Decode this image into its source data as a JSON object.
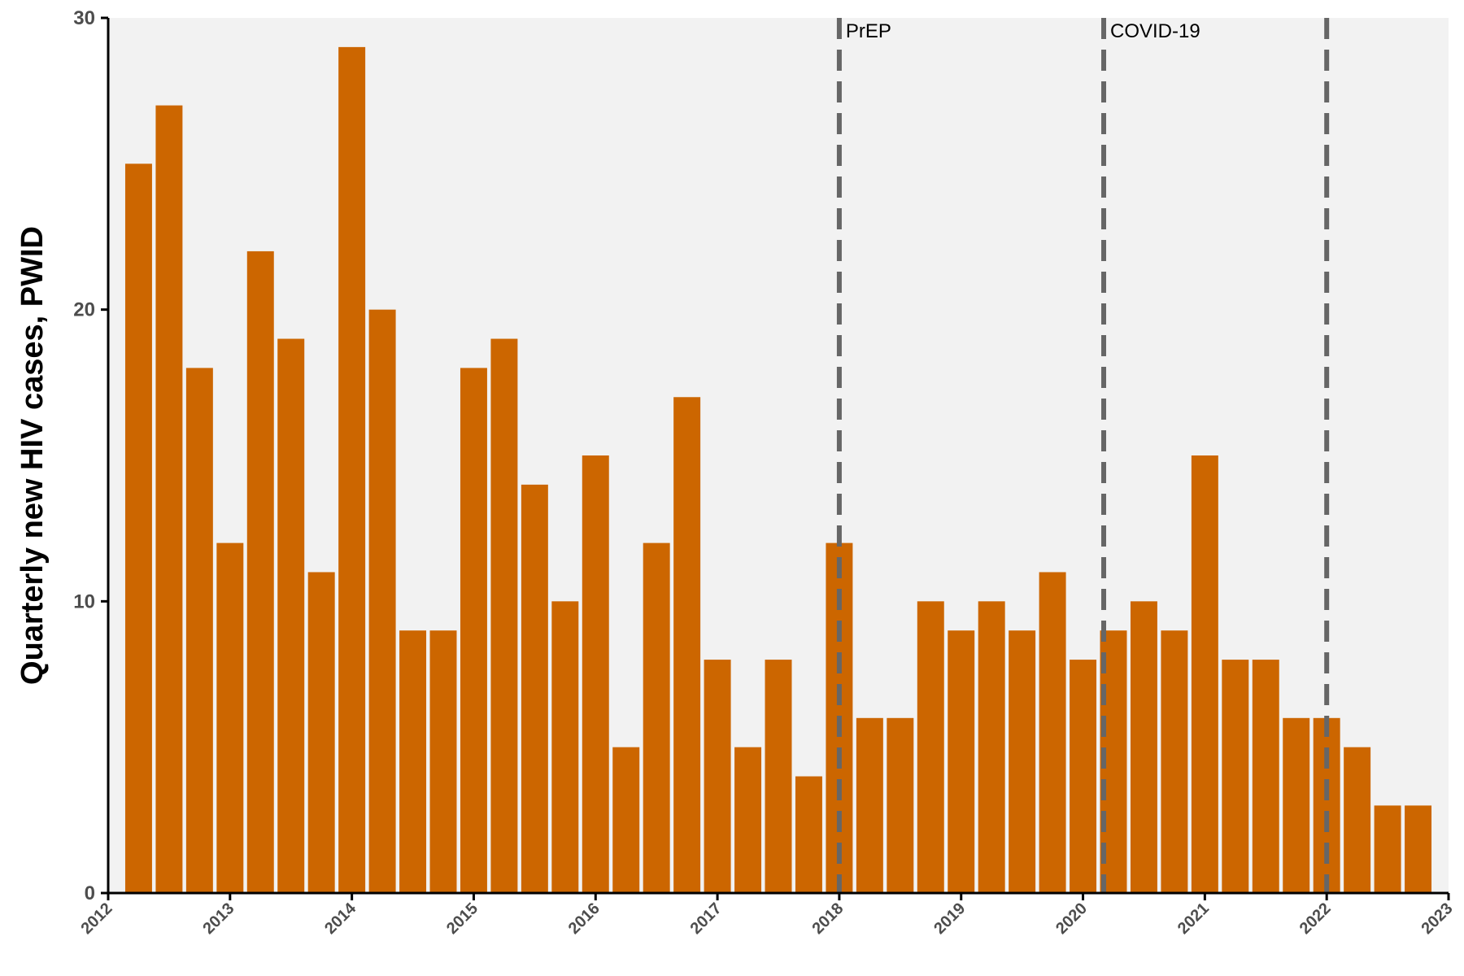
{
  "chart_data": {
    "type": "bar",
    "title": "",
    "xlabel": "",
    "ylabel": "Quarterly new HIV cases, PWID",
    "ylim": [
      0,
      30
    ],
    "xlim": [
      2012,
      2023
    ],
    "grid": false,
    "legend": "none",
    "colors": {
      "bar": "#CC6600",
      "panel": "#F2F2F2",
      "reference_line": "#666666"
    },
    "y_ticks": [
      "0",
      "10",
      "20",
      "30"
    ],
    "x_ticks": [
      "2012",
      "2013",
      "2014",
      "2015",
      "2016",
      "2017",
      "2018",
      "2019",
      "2020",
      "2021",
      "2022",
      "2023"
    ],
    "x": [
      2012.25,
      2012.5,
      2012.75,
      2013.0,
      2013.25,
      2013.5,
      2013.75,
      2014.0,
      2014.25,
      2014.5,
      2014.75,
      2015.0,
      2015.25,
      2015.5,
      2015.75,
      2016.0,
      2016.25,
      2016.5,
      2016.75,
      2017.0,
      2017.25,
      2017.5,
      2017.75,
      2018.0,
      2018.25,
      2018.5,
      2018.75,
      2019.0,
      2019.25,
      2019.5,
      2019.75,
      2020.0,
      2020.25,
      2020.5,
      2020.75,
      2021.0,
      2021.25,
      2021.5,
      2021.75,
      2022.0,
      2022.25,
      2022.5,
      2022.75
    ],
    "values": [
      25,
      27,
      18,
      12,
      22,
      19,
      11,
      29,
      20,
      9,
      9,
      18,
      19,
      14,
      10,
      15,
      5,
      12,
      17,
      8,
      5,
      8,
      4,
      12,
      6,
      6,
      10,
      9,
      10,
      9,
      11,
      8,
      9,
      10,
      9,
      15,
      8,
      8,
      6,
      6,
      5,
      3,
      3
    ],
    "bar_width": 0.22,
    "reference_lines": [
      {
        "x": 2018.0,
        "label": "PrEP"
      },
      {
        "x": 2020.17,
        "label": "COVID-19"
      },
      {
        "x": 2022.0,
        "label": ""
      }
    ]
  }
}
